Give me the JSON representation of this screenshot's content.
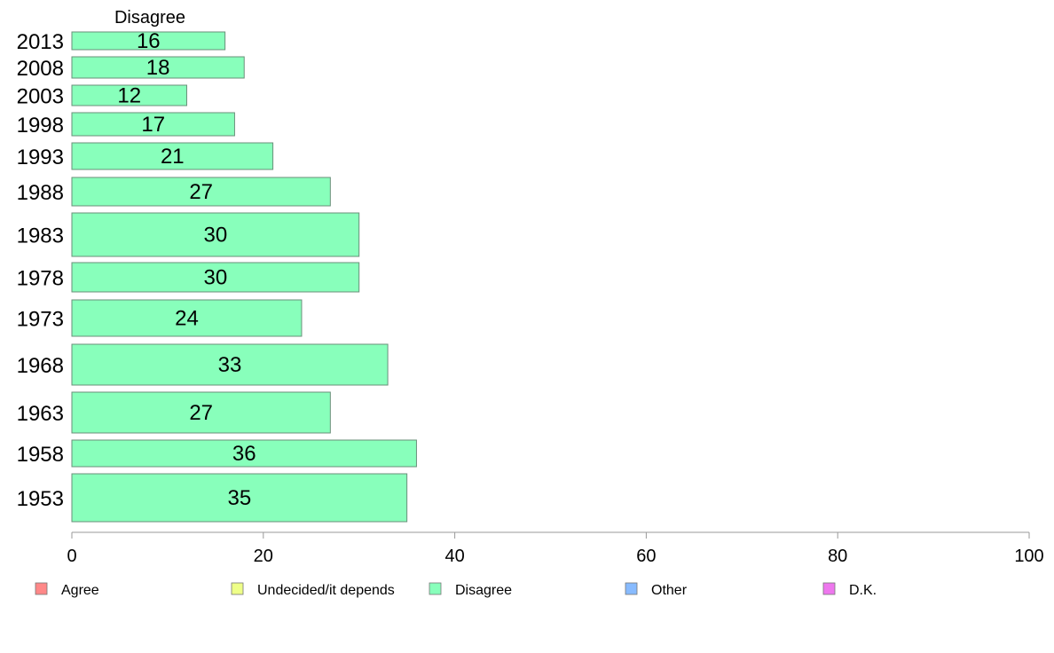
{
  "chart_data": {
    "type": "bar",
    "orientation": "horizontal",
    "header": "Disagree",
    "categories": [
      "2013",
      "2008",
      "2003",
      "1998",
      "1993",
      "1988",
      "1983",
      "1978",
      "1973",
      "1968",
      "1963",
      "1958",
      "1953"
    ],
    "values": [
      16,
      18,
      12,
      17,
      21,
      27,
      30,
      30,
      24,
      33,
      27,
      36,
      35
    ],
    "xlim": [
      0,
      100
    ],
    "xticks": [
      0,
      20,
      40,
      60,
      80,
      100
    ],
    "series_color": "#88ffbb",
    "grid": false,
    "legend_position": "bottom",
    "legend": [
      {
        "label": "Agree",
        "color": "#ff8888"
      },
      {
        "label": "Undecided/it depends",
        "color": "#eeff88"
      },
      {
        "label": "Disagree",
        "color": "#88ffbb"
      },
      {
        "label": "Other",
        "color": "#88bbff"
      },
      {
        "label": "D.K.",
        "color": "#ee77ee"
      }
    ]
  }
}
